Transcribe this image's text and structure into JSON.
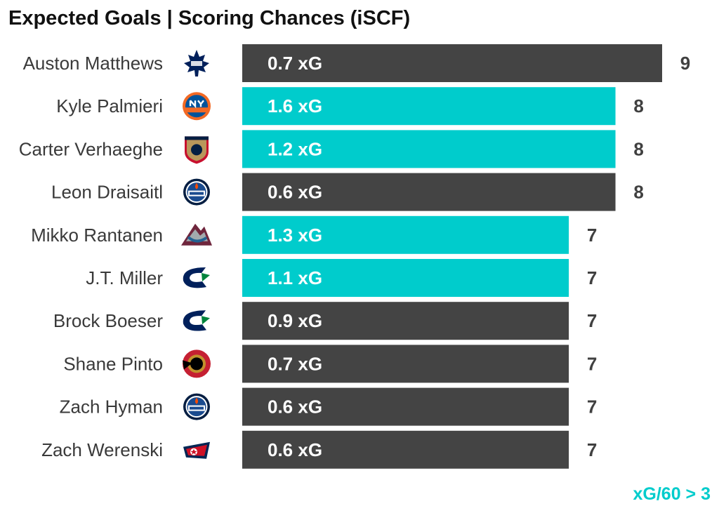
{
  "title": "Expected Goals | Scoring Chances (iSCF)",
  "footnote": "xG/60 > 3",
  "colors": {
    "highlight": "#00cccc",
    "default": "#444444",
    "name_text": "#3a3a3a",
    "value_text": "#404040"
  },
  "chart_data": {
    "type": "bar",
    "orientation": "horizontal",
    "title": "Expected Goals | Scoring Chances (iSCF)",
    "xlim": [
      0,
      9
    ],
    "grid": false,
    "categories": [
      "Auston Matthews",
      "Kyle Palmieri",
      "Carter Verhaeghe",
      "Leon Draisaitl",
      "Mikko Rantanen",
      "J.T. Miller",
      "Brock Boeser",
      "Shane Pinto",
      "Zach Hyman",
      "Zach Werenski"
    ],
    "teams": [
      "maple-leafs-logo-icon",
      "islanders-logo-icon",
      "panthers-logo-icon",
      "oilers-logo-icon",
      "avalanche-logo-icon",
      "canucks-logo-icon",
      "canucks-logo-icon",
      "senators-logo-icon",
      "oilers-logo-icon",
      "blue-jackets-logo-icon"
    ],
    "values": [
      9,
      8,
      8,
      8,
      7,
      7,
      7,
      7,
      7,
      7
    ],
    "bar_labels": [
      "0.7 xG",
      "1.6 xG",
      "1.2 xG",
      "0.6 xG",
      "1.3 xG",
      "1.1 xG",
      "0.9 xG",
      "0.7 xG",
      "0.6 xG",
      "0.6 xG"
    ],
    "highlighted": [
      false,
      true,
      true,
      false,
      true,
      true,
      false,
      false,
      false,
      false
    ],
    "highlight_legend": "xG/60 > 3"
  }
}
